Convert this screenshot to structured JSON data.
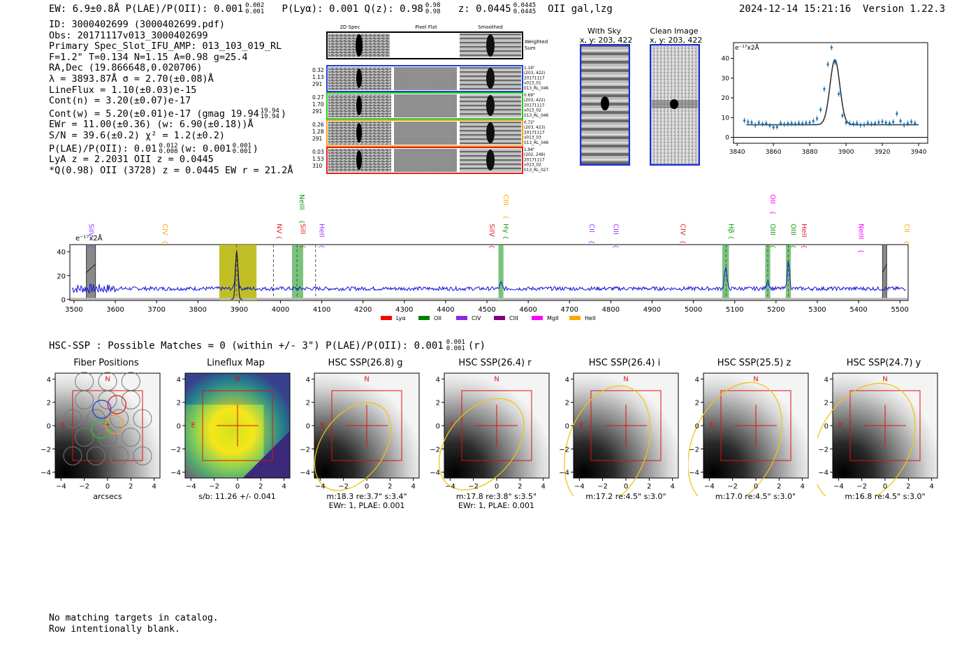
{
  "header": {
    "ew_text": "EW: 6.9±0.8Å  P(LAE)/P(OII): 0.001",
    "ew_sup": "0.002",
    "ew_sub": "0.001",
    "plya_text": "P(Lyα): 0.001  Q(z): 0.98",
    "q_sup": "0.98",
    "q_sub": "0.98",
    "z_text": "z: 0.0445",
    "z_sup": "0.0445",
    "z_sub": "0.0445",
    "class_text": "OII   gal,lzg",
    "timestamp": "2024-12-14 15:21:16",
    "version": "Version 1.22.3"
  },
  "info": {
    "lines": [
      "ID: 3000402699 (3000402699.pdf)",
      "Obs: 20171117v013_3000402699",
      "Primary Spec_Slot_IFU_AMP: 013_103_019_RL",
      "F=1.2\"  T=0.134  N=1.15  A=0.98  g=25.4",
      "RA,Dec (19.866648,0.020706)",
      "λ = 3893.87Å  σ = 2.70(±0.08)Å",
      "LineFlux = 1.10(±0.03)e-15",
      "Cont(n) = 3.20(±0.07)e-17"
    ],
    "contw_text": "Cont(w) = 5.20(±0.01)e-17 (gmag 19.94",
    "contw_sup": "19.94",
    "contw_sub": "19.94",
    "contw_end": ")",
    "ewr_text": "EWr = 11.00(±0.36) (w: 6.90(±0.18))Å",
    "sn_text": "S/N = 39.6(±0.2)  χ² = 1.2(±0.2)",
    "plae_text": "P(LAE)/P(OII): 0.01",
    "plae_sup": "0.012",
    "plae_sub": "0.008",
    "plae_mid": "(w: 0.001",
    "plae_w_sup": "0.001",
    "plae_w_sub": "0.001",
    "plae_end": ")",
    "lya_text": "LyA z = 2.2031  OII z = 0.0445",
    "q_text": "*Q(0.98) OII (3728) z = 0.0445  EW r = 21.2Å"
  },
  "cutouts": {
    "headers": [
      "2D Spec",
      "Pixel Flat",
      "Smoothed"
    ],
    "weighted_label": "Weighted Sum",
    "rows": [
      {
        "left": [
          "0.32",
          "1.13",
          "291"
        ],
        "right": [
          "1.16\"",
          "(203, 422)",
          "20171117",
          "v013_01",
          "013_RL_046"
        ],
        "color": "#1f3fd6"
      },
      {
        "left": [
          "0.27",
          "1.70",
          "291"
        ],
        "right": [
          "0.69\"",
          "(203, 422)",
          "20171117",
          "v013_02",
          "013_RL_046"
        ],
        "color": "#22cc22"
      },
      {
        "left": [
          "0.26",
          "1.28",
          "291"
        ],
        "right": [
          "0.72\"",
          "(203, 423)",
          "20171117",
          "v013_03",
          "013_RL_046"
        ],
        "color": "#f0a020"
      },
      {
        "left": [
          "0.03",
          "1.53",
          "310"
        ],
        "right": [
          "1.94\"",
          "(202, 248)",
          "20171117",
          "v013_02",
          "013_RL_027"
        ],
        "color": "#e02020"
      }
    ]
  },
  "sky_images": {
    "with_sky_title": "With Sky",
    "with_sky_coords": "x, y: 203, 422",
    "clean_title": "Clean Image",
    "clean_coords": "x, y: 203, 422"
  },
  "chart_data": [
    {
      "type": "scatter",
      "title": "",
      "ylabel": "e⁻¹⁷x2Å",
      "xlim": [
        3838,
        3945
      ],
      "ylim": [
        -3,
        48
      ],
      "xticks": [
        3840,
        3860,
        3880,
        3900,
        3920,
        3940
      ],
      "yticks": [
        0,
        10,
        20,
        30,
        40
      ],
      "points_x": [
        3844,
        3846,
        3848,
        3850,
        3852,
        3854,
        3856,
        3858,
        3860,
        3862,
        3864,
        3866,
        3868,
        3870,
        3872,
        3874,
        3876,
        3878,
        3880,
        3882,
        3884,
        3886,
        3888,
        3890,
        3892,
        3894,
        3896,
        3898,
        3900,
        3902,
        3904,
        3906,
        3908,
        3910,
        3912,
        3914,
        3916,
        3918,
        3920,
        3922,
        3924,
        3926,
        3928,
        3930,
        3932,
        3934,
        3936,
        3938
      ],
      "points_y": [
        8.5,
        7.8,
        7.5,
        6.2,
        7.4,
        6.8,
        7.1,
        6.0,
        5.1,
        5.3,
        7.2,
        6.6,
        7.0,
        7.1,
        6.8,
        7.2,
        7.0,
        7.3,
        7.4,
        8.2,
        9.5,
        14.0,
        24.5,
        37.0,
        45.5,
        38.0,
        22.0,
        11.0,
        7.5,
        7.1,
        6.8,
        7.2,
        6.2,
        6.4,
        7.3,
        6.8,
        7.0,
        7.6,
        8.0,
        7.4,
        7.1,
        7.8,
        12.0,
        8.3,
        6.3,
        7.1,
        7.9,
        7.2
      ],
      "fit": {
        "center": 3893.87,
        "sigma": 2.7,
        "amplitude": 33.0,
        "continuum": 6.4
      }
    },
    {
      "type": "line",
      "ylabel": "e⁻¹⁷x2Å",
      "xlim": [
        3490,
        5520
      ],
      "ylim": [
        -1,
        46
      ],
      "xticks": [
        3500,
        3600,
        3700,
        3800,
        3900,
        4000,
        4100,
        4200,
        4300,
        4400,
        4500,
        4600,
        4700,
        4800,
        4900,
        5000,
        5100,
        5200,
        5300,
        5400,
        5500
      ],
      "yticks": [
        0,
        20,
        40
      ],
      "series": [
        {
          "name": "spectrum",
          "color": "#1010dd",
          "continuum": 9.0,
          "peaks": [
            {
              "x": 3894,
              "amp": 30,
              "sig": 3
            },
            {
              "x": 4534,
              "amp": 5,
              "sig": 2.5
            },
            {
              "x": 5078,
              "amp": 18,
              "sig": 3
            },
            {
              "x": 5180,
              "amp": 7,
              "sig": 3
            },
            {
              "x": 5230,
              "amp": 23,
              "sig": 2.8
            }
          ]
        },
        {
          "name": "model",
          "color": "#1a1a40",
          "continuum": 0,
          "peaks": [
            {
              "x": 3894,
              "amp": 40,
              "sig": 3
            }
          ]
        }
      ],
      "bands_yellow": [
        [
          3852,
          3942
        ]
      ],
      "bands_green": [
        [
          4028,
          4055
        ],
        [
          4528,
          4540
        ],
        [
          5070,
          5086
        ],
        [
          5174,
          5186
        ],
        [
          5224,
          5236
        ]
      ],
      "bands_gray": [
        [
          3530,
          3552
        ],
        [
          5458,
          5468
        ]
      ],
      "dashed_lines": [
        3894,
        3983,
        4040,
        4085,
        5079,
        5180,
        5230
      ],
      "line_labels": [
        {
          "name": "SiIV",
          "x": 3530,
          "color": "#9933ff",
          "row": 0
        },
        {
          "name": "CIV",
          "x": 3708,
          "color": "#ffa500",
          "row": 0
        },
        {
          "name": "NV",
          "x": 3985,
          "color": "#e02020",
          "row": 0
        },
        {
          "name": "NeIII",
          "x": 4040,
          "color": "#119911",
          "row": 2
        },
        {
          "name": "SiII",
          "x": 4042,
          "color": "#e02020",
          "row": 0
        },
        {
          "name": "HeII",
          "x": 4088,
          "color": "#9933ff",
          "row": 0
        },
        {
          "name": "SiIV",
          "x": 4500,
          "color": "#e02020",
          "row": 0
        },
        {
          "name": "CIII",
          "x": 4534,
          "color": "#ffa500",
          "row": 2
        },
        {
          "name": "Hγ",
          "x": 4534,
          "color": "#119911",
          "row": 0
        },
        {
          "name": "CII",
          "x": 4742,
          "color": "#9933ff",
          "row": 0
        },
        {
          "name": "CIII",
          "x": 4800,
          "color": "#9933ff",
          "row": 0
        },
        {
          "name": "CIV",
          "x": 4963,
          "color": "#e02020",
          "row": 0
        },
        {
          "name": "Hβ",
          "x": 5079,
          "color": "#119911",
          "row": 0
        },
        {
          "name": "OII",
          "x": 5180,
          "color": "#ff00ff",
          "row": 2
        },
        {
          "name": "OIII",
          "x": 5180,
          "color": "#119911",
          "row": 0
        },
        {
          "name": "OIII",
          "x": 5230,
          "color": "#119911",
          "row": 0
        },
        {
          "name": "HeII",
          "x": 5256,
          "color": "#e02020",
          "row": 0
        },
        {
          "name": "NeIII",
          "x": 5394,
          "color": "#ff00ff",
          "row": 0
        },
        {
          "name": "CII",
          "x": 5505,
          "color": "#ffa500",
          "row": 0
        }
      ],
      "legend": [
        {
          "name": "Lyα",
          "color": "#ff0000"
        },
        {
          "name": "OII",
          "color": "#008000"
        },
        {
          "name": "CIV",
          "color": "#8a2be2"
        },
        {
          "name": "CIII",
          "color": "#800080"
        },
        {
          "name": "MgII",
          "color": "#ff00ff"
        },
        {
          "name": "HeII",
          "color": "#ffa500"
        }
      ]
    }
  ],
  "hsc": {
    "summary_text": "HSC-SSP : Possible Matches = 0 (within +/- 3\")  P(LAE)/P(OII): 0.001",
    "summary_sup": "0.001",
    "summary_sub": "0.001",
    "summary_end": "(r)",
    "panels": [
      {
        "title": "Fiber Positions",
        "xlabel": "arcsecs",
        "sub": ""
      },
      {
        "title": "Lineflux Map",
        "xlabel": "s/b: 11.26 +/- 0.041",
        "sub": ""
      },
      {
        "title": "HSC SSP(26.8) g",
        "xlabel": "m:18.3  re:3.7\"  s:3.4\"",
        "sub": "EWr: 1, PLAE: 0.001"
      },
      {
        "title": "HSC SSP(26.4) r",
        "xlabel": "m:17.8  re:3.8\"  s:3.5\"",
        "sub": "EWr: 1, PLAE: 0.001"
      },
      {
        "title": "HSC SSP(26.4) i",
        "xlabel": "m:17.2  re:4.5\"  s:3.0\"",
        "sub": ""
      },
      {
        "title": "HSC SSP(25.5) z",
        "xlabel": "m:17.0  re:4.5\"  s:3.0\"",
        "sub": ""
      },
      {
        "title": "HSC SSP(24.7) y",
        "xlabel": "m:16.8  re:4.5\"  s:3.0\"",
        "sub": ""
      }
    ],
    "tick_labels": [
      "−4",
      "−2",
      "0",
      "2",
      "4"
    ],
    "n_label": "N",
    "e_label": "E"
  },
  "footer": {
    "line1": "No matching targets in catalog.",
    "line2": "Row intentionally blank."
  }
}
